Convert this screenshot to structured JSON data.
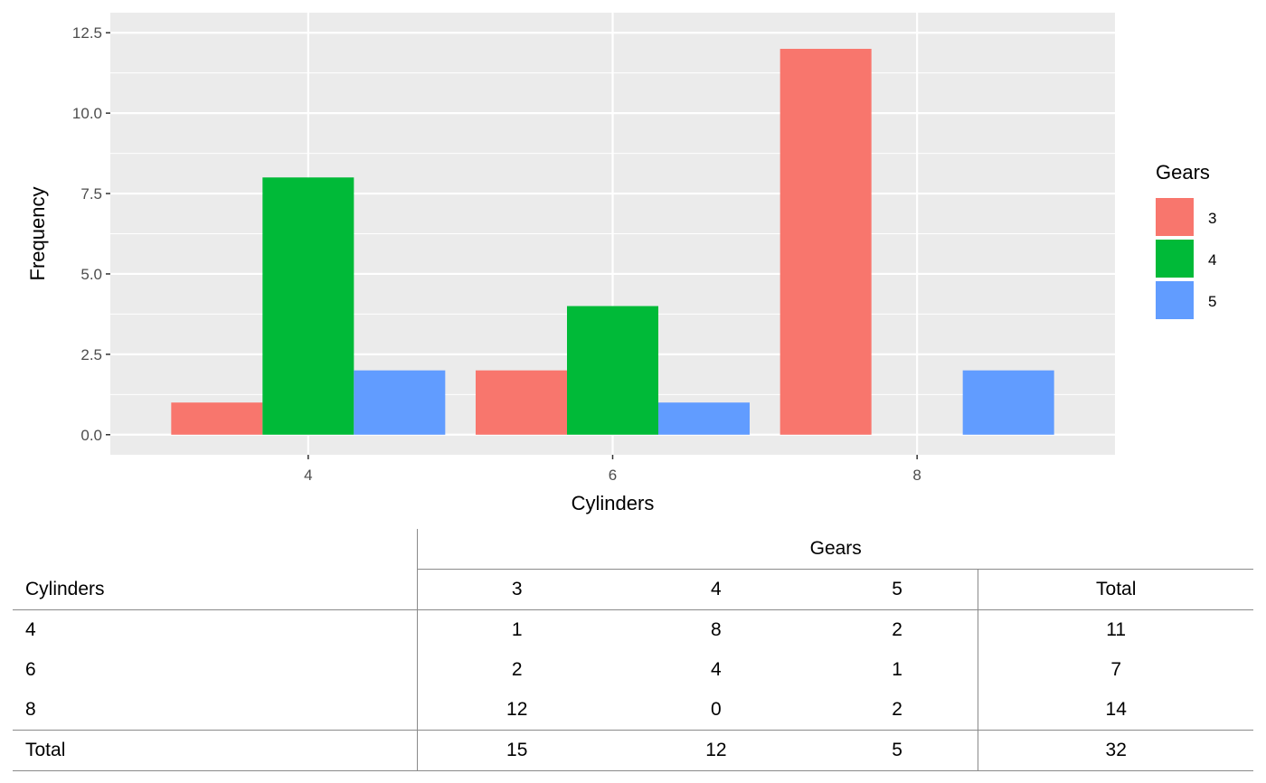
{
  "chart_data": {
    "type": "bar",
    "xlabel": "Cylinders",
    "ylabel": "Frequency",
    "categories": [
      "4",
      "6",
      "8"
    ],
    "series": [
      {
        "name": "3",
        "values": [
          1,
          2,
          12
        ],
        "color": "#F8766D"
      },
      {
        "name": "4",
        "values": [
          8,
          4,
          0
        ],
        "color": "#00BA38"
      },
      {
        "name": "5",
        "values": [
          2,
          1,
          2
        ],
        "color": "#619CFF"
      }
    ],
    "ylim": [
      0,
      12.5
    ],
    "yticks": [
      "0.0",
      "2.5",
      "5.0",
      "7.5",
      "10.0",
      "12.5"
    ],
    "legend": {
      "title": "Gears",
      "position": "right"
    },
    "grid": true,
    "panel_background": "#EBEBEB"
  },
  "table": {
    "spanner": "Gears",
    "row_header": "Cylinders",
    "columns": [
      "3",
      "4",
      "5",
      "Total"
    ],
    "rows": [
      {
        "label": "4",
        "values": [
          "1",
          "8",
          "2",
          "11"
        ]
      },
      {
        "label": "6",
        "values": [
          "2",
          "4",
          "1",
          "7"
        ]
      },
      {
        "label": "8",
        "values": [
          "12",
          "0",
          "2",
          "14"
        ]
      }
    ],
    "total": {
      "label": "Total",
      "values": [
        "15",
        "12",
        "5",
        "32"
      ]
    }
  }
}
